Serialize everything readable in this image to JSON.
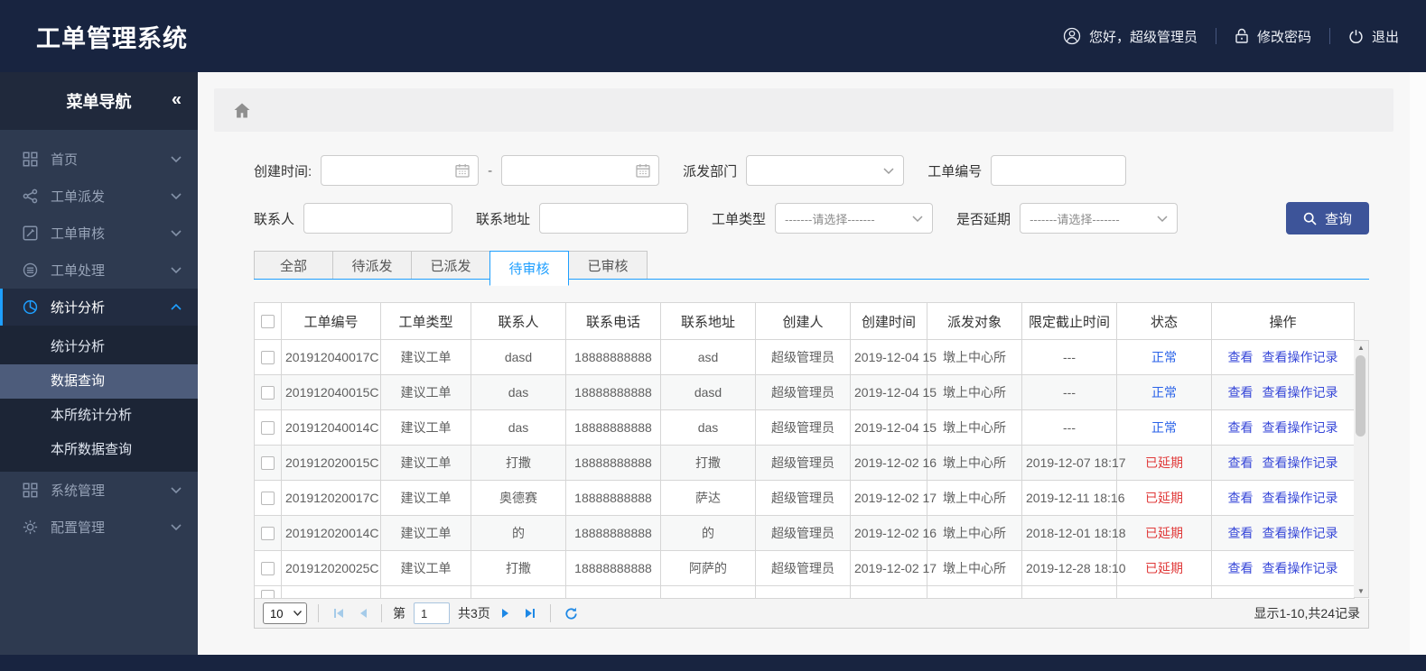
{
  "header": {
    "title": "工单管理系统",
    "greeting": "您好，超级管理员",
    "change_password": "修改密码",
    "logout": "退出"
  },
  "sidebar": {
    "title": "菜单导航",
    "collapse_icon": "«",
    "items": [
      {
        "label": "首页",
        "icon": "grid",
        "active": false
      },
      {
        "label": "工单派发",
        "icon": "share",
        "active": false
      },
      {
        "label": "工单审核",
        "icon": "edit",
        "active": false
      },
      {
        "label": "工单处理",
        "icon": "layers",
        "active": false
      },
      {
        "label": "统计分析",
        "icon": "pie",
        "active": true
      },
      {
        "label": "系统管理",
        "icon": "grid",
        "active": false
      },
      {
        "label": "配置管理",
        "icon": "gear",
        "active": false
      }
    ],
    "submenu": [
      "统计分析",
      "数据查询",
      "本所统计分析",
      "本所数据查询"
    ],
    "submenu_selected_index": 1
  },
  "filters": {
    "created_time_label": "创建时间:",
    "range_separator": "-",
    "dispatch_dept_label": "派发部门",
    "order_no_label": "工单编号",
    "contact_label": "联系人",
    "address_label": "联系地址",
    "order_type_label": "工单类型",
    "delay_label": "是否延期",
    "select_placeholder": "-------请选择-------",
    "search_button": "查询"
  },
  "tabs": [
    {
      "label": "全部",
      "active": false
    },
    {
      "label": "待派发",
      "active": false
    },
    {
      "label": "已派发",
      "active": false
    },
    {
      "label": "待审核",
      "active": true
    },
    {
      "label": "已审核",
      "active": false
    }
  ],
  "table": {
    "columns": [
      "工单编号",
      "工单类型",
      "联系人",
      "联系电话",
      "联系地址",
      "创建人",
      "创建时间",
      "派发对象",
      "限定截止时间",
      "状态",
      "操作"
    ],
    "action_labels": [
      "查看",
      "查看操作记录"
    ],
    "rows": [
      {
        "order_no": "201912040017C",
        "type": "建议工单",
        "contact": "dasd",
        "phone": "18888888888",
        "address": "asd",
        "creator": "超级管理员",
        "created": "2019-12-04 15",
        "target": "墩上中心所",
        "deadline": "---",
        "status": "正常",
        "delayed": false
      },
      {
        "order_no": "201912040015C",
        "type": "建议工单",
        "contact": "das",
        "phone": "18888888888",
        "address": "dasd",
        "creator": "超级管理员",
        "created": "2019-12-04 15",
        "target": "墩上中心所",
        "deadline": "---",
        "status": "正常",
        "delayed": false
      },
      {
        "order_no": "201912040014C",
        "type": "建议工单",
        "contact": "das",
        "phone": "18888888888",
        "address": "das",
        "creator": "超级管理员",
        "created": "2019-12-04 15",
        "target": "墩上中心所",
        "deadline": "---",
        "status": "正常",
        "delayed": false
      },
      {
        "order_no": "201912020015C",
        "type": "建议工单",
        "contact": "打撒",
        "phone": "18888888888",
        "address": "打撒",
        "creator": "超级管理员",
        "created": "2019-12-02 16",
        "target": "墩上中心所",
        "deadline": "2019-12-07 18:17",
        "status": "已延期",
        "delayed": true
      },
      {
        "order_no": "201912020017C",
        "type": "建议工单",
        "contact": "奥德赛",
        "phone": "18888888888",
        "address": "萨达",
        "creator": "超级管理员",
        "created": "2019-12-02 17",
        "target": "墩上中心所",
        "deadline": "2019-12-11 18:16",
        "status": "已延期",
        "delayed": true
      },
      {
        "order_no": "201912020014C",
        "type": "建议工单",
        "contact": "的",
        "phone": "18888888888",
        "address": "的",
        "creator": "超级管理员",
        "created": "2019-12-02 16",
        "target": "墩上中心所",
        "deadline": "2018-12-01 18:18",
        "status": "已延期",
        "delayed": true
      },
      {
        "order_no": "201912020025C",
        "type": "建议工单",
        "contact": "打撒",
        "phone": "18888888888",
        "address": "阿萨的",
        "creator": "超级管理员",
        "created": "2019-12-02 17",
        "target": "墩上中心所",
        "deadline": "2019-12-28 18:10",
        "status": "已延期",
        "delayed": true
      }
    ]
  },
  "pagination": {
    "page_size": "10",
    "page_prefix": "第",
    "current_page": "1",
    "total_pages": "共3页",
    "summary": "显示1-10,共24记录"
  },
  "colors": {
    "accent": "#1e9fff",
    "header_bg": "#182440",
    "sidebar_bg": "#2e3a50",
    "submenu_selected_bg": "#4d5c7b",
    "status_normal": "#2a62e8",
    "status_delayed": "#e03a3a",
    "link": "#3848d8",
    "search_button_bg": "#3d5499",
    "pager_icon_active": "#1e88e5",
    "pager_icon_disabled": "#a5cbe9"
  }
}
